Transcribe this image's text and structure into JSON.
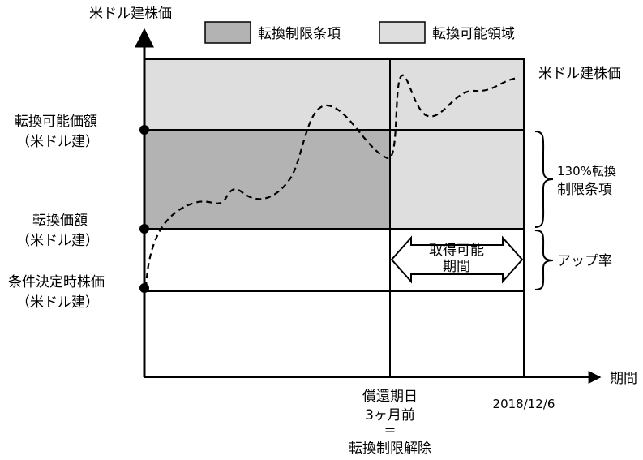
{
  "colors": {
    "conversion_limit_fill": "#b3b3b3",
    "convertible_fill": "#dedede",
    "background": "#ffffff",
    "line": "#000000"
  },
  "axis": {
    "y_label": "米ドル建株価",
    "x_label": "期間"
  },
  "legend": {
    "conversion_limit_clause": "転換制限条項",
    "convertible_area": "転換可能領域"
  },
  "left_labels": {
    "convertible_price_line1": "転換可能価額",
    "convertible_price_line2": "（米ドル建）",
    "conversion_price_line1": "転換価額",
    "conversion_price_line2": "（米ドル建）",
    "reference_price_line1": "条件決定時株価",
    "reference_price_line2": "（米ドル建）"
  },
  "right_labels": {
    "stock_price_series": "米ドル建株価",
    "limit_clause_line1": "130%転換",
    "limit_clause_line2": "制限条項",
    "up_rate": "アップ率"
  },
  "arrow_box": {
    "line1": "取得可能",
    "line2": "期間"
  },
  "bottom_labels": {
    "redemption_line1": "償還期日",
    "redemption_line2": "3ヶ月前",
    "redemption_line3": "＝",
    "redemption_line4": "転換制限解除",
    "date": "2018/12/6"
  }
}
